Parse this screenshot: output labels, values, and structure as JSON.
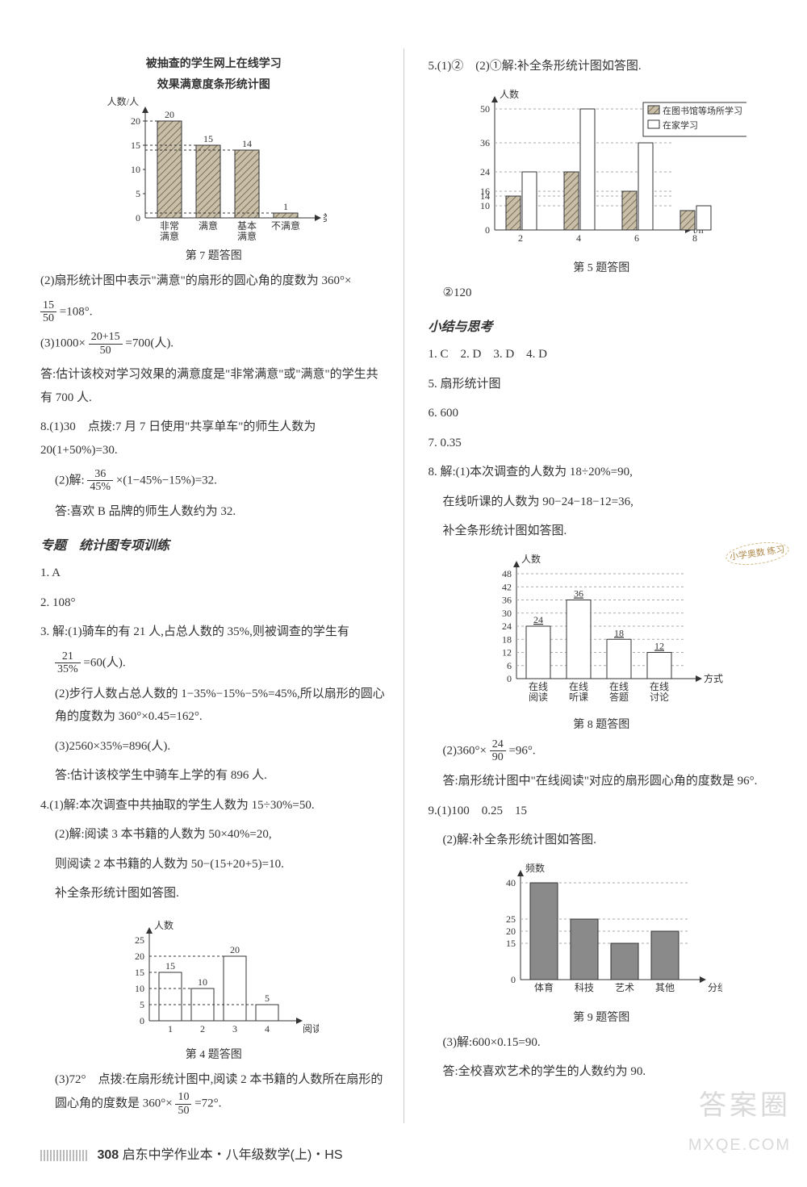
{
  "footer": {
    "page": "308",
    "text": "启东中学作业本・八年级数学(上)・HS"
  },
  "watermark": {
    "line1": "答案圈",
    "line2": "MXQE.COM"
  },
  "left": {
    "chart7": {
      "type": "bar",
      "title1": "被抽查的学生网上在线学习",
      "title2": "效果满意度条形统计图",
      "y_label": "人数/人",
      "x_label": "类别",
      "categories": [
        "非常\n满意",
        "满意",
        "基本\n满意",
        "不满意"
      ],
      "values": [
        20,
        15,
        14,
        1
      ],
      "ylim": [
        0,
        20
      ],
      "ytick_step": 5,
      "bar_color": "#b4a890",
      "hatched": true,
      "axis_color": "#333333",
      "grid_dash": "3,3",
      "caption": "第 7 题答图"
    },
    "p2": "(2)扇形统计图中表示\"满意\"的扇形的圆心角的度数为 360°×",
    "p2_frac": {
      "num": "15",
      "den": "50"
    },
    "p2_tail": "=108°.",
    "p3a": "(3)1000×",
    "p3_frac": {
      "num": "20+15",
      "den": "50"
    },
    "p3b": "=700(人).",
    "p4": "答:估计该校对学习效果的满意度是\"非常满意\"或\"满意\"的学生共有 700 人.",
    "q8_1": "8.(1)30　点拨:7 月 7 日使用\"共享单车\"的师生人数为 20(1+50%)=30.",
    "q8_2a": "(2)解:",
    "q8_2_frac": {
      "num": "36",
      "den": "45%"
    },
    "q8_2b": "×(1−45%−15%)=32.",
    "q8_2c": "答:喜欢 B 品牌的师生人数约为 32.",
    "sec1": "专题　统计图专项训练",
    "s1_1": "1. A",
    "s1_2": "2. 108°",
    "s1_3a": "3. 解:(1)骑车的有 21 人,占总人数的 35%,则被调查的学生有",
    "s1_3_frac": {
      "num": "21",
      "den": "35%"
    },
    "s1_3b": "=60(人).",
    "s1_3_2": "(2)步行人数占总人数的 1−35%−15%−5%=45%,所以扇形的圆心角的度数为 360°×0.45=162°.",
    "s1_3_3": "(3)2560×35%=896(人).",
    "s1_3_3b": "答:估计该校学生中骑车上学的有 896 人.",
    "s1_4_1": "4.(1)解:本次调查中共抽取的学生人数为 15÷30%=50.",
    "s1_4_2a": "(2)解:阅读 3 本书籍的人数为 50×40%=20,",
    "s1_4_2b": "则阅读 2 本书籍的人数为 50−(15+20+5)=10.",
    "s1_4_2c": "补全条形统计图如答图.",
    "chart4": {
      "type": "bar",
      "y_label": "人数",
      "x_label": "阅读量/本",
      "categories": [
        "1",
        "2",
        "3",
        "4"
      ],
      "values": [
        15,
        10,
        20,
        5
      ],
      "ylim": [
        0,
        25
      ],
      "ytick_step": 5,
      "bar_color": "#ffffff",
      "border_color": "#333333",
      "caption": "第 4 题答图"
    },
    "s1_4_3a": "(3)72°　点拨:在扇形统计图中,阅读 2 本书籍的人数所在扇形的圆心角的度数是 360°×",
    "s1_4_3_frac": {
      "num": "10",
      "den": "50"
    },
    "s1_4_3b": "=72°."
  },
  "right": {
    "q5_head": "5.(1)②　(2)①解:补全条形统计图如答图.",
    "chart5": {
      "type": "grouped-bar",
      "y_label": "人数",
      "x_label": "t/h",
      "categories": [
        "2",
        "4",
        "6",
        "8"
      ],
      "series": [
        {
          "name": "在图书馆等场所学习",
          "color": "#b4a890",
          "hatched": true,
          "values": [
            14,
            24,
            16,
            8
          ]
        },
        {
          "name": "在家学习",
          "color": "#ffffff",
          "hatched": false,
          "values": [
            24,
            50,
            36,
            10
          ]
        }
      ],
      "yticks": [
        10,
        14,
        16,
        24,
        36,
        50
      ],
      "caption": "第 5 题答图"
    },
    "q5_2": "②120",
    "sec2": "小结与思考",
    "a1": "1. C　2. D　3. D　4. D",
    "a5": "5. 扇形统计图",
    "a6": "6. 600",
    "a7": "7. 0.35",
    "a8_1": "8. 解:(1)本次调查的人数为 18÷20%=90,",
    "a8_2": "在线听课的人数为 90−24−18−12=36,",
    "a8_3": "补全条形统计图如答图.",
    "chart8": {
      "type": "bar",
      "y_label": "人数",
      "x_label": "方式",
      "categories": [
        "在线\n阅读",
        "在线\n听课",
        "在线\n答题",
        "在线\n讨论"
      ],
      "values": [
        24,
        36,
        18,
        12
      ],
      "ylim": [
        0,
        48
      ],
      "ytick_step": 6,
      "bar_color": "#ffffff",
      "border_color": "#333333",
      "caption": "第 8 题答图"
    },
    "sticker": "小学奥数\n练习",
    "a8_4a": "(2)360°×",
    "a8_4_frac": {
      "num": "24",
      "den": "90"
    },
    "a8_4b": "=96°.",
    "a8_5": "答:扇形统计图中\"在线阅读\"对应的扇形圆心角的度数是 96°.",
    "a9_1": "9.(1)100　0.25　15",
    "a9_2": "(2)解:补全条形统计图如答图.",
    "chart9": {
      "type": "bar",
      "y_label": "频数",
      "x_label": "分组",
      "categories": [
        "体育",
        "科技",
        "艺术",
        "其他"
      ],
      "values": [
        40,
        25,
        15,
        20
      ],
      "yticks": [
        15,
        20,
        25,
        40
      ],
      "bar_color": "#8a8a8a",
      "caption": "第 9 题答图"
    },
    "a9_3": "(3)解:600×0.15=90.",
    "a9_4": "答:全校喜欢艺术的学生的人数约为 90."
  }
}
